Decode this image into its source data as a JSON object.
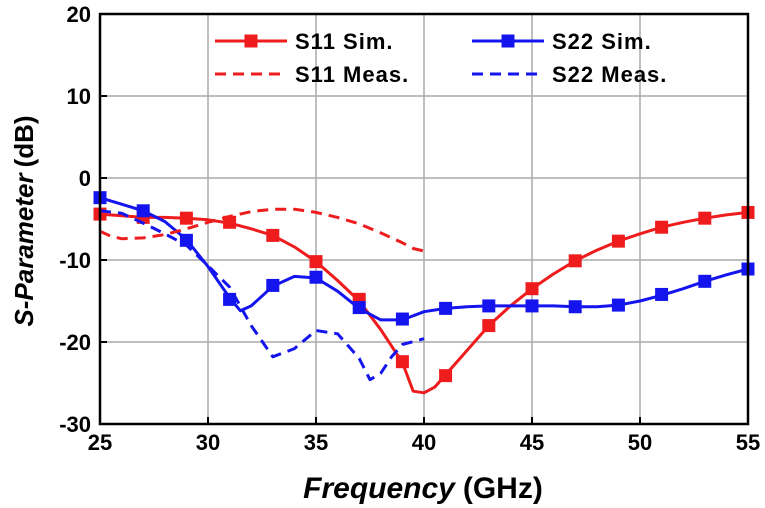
{
  "chart_data": {
    "type": "line",
    "title": "",
    "xlabel_main": "Frequency",
    "xlabel_unit": "(GHz)",
    "ylabel_main": "S-Parameter",
    "ylabel_unit": "(dB)",
    "xlim": [
      25,
      55
    ],
    "ylim": [
      -30,
      20
    ],
    "xticks": [
      25,
      30,
      35,
      40,
      45,
      50,
      55
    ],
    "yticks": [
      20,
      10,
      0,
      -10,
      -20,
      -30
    ],
    "grid": true,
    "legend_position": "top-right",
    "series": [
      {
        "name": "S11 Sim.",
        "color": "#ee1c1c",
        "style": "solid",
        "marker": "square",
        "curve": [
          [
            25,
            -4.4
          ],
          [
            26,
            -4.6
          ],
          [
            27,
            -4.8
          ],
          [
            28,
            -4.8
          ],
          [
            29,
            -4.9
          ],
          [
            30,
            -5.1
          ],
          [
            31,
            -5.5
          ],
          [
            32,
            -6.2
          ],
          [
            33,
            -7.0
          ],
          [
            34,
            -8.4
          ],
          [
            35,
            -10.2
          ],
          [
            36,
            -12.5
          ],
          [
            37,
            -15.0
          ],
          [
            38,
            -18.5
          ],
          [
            39,
            -22.5
          ],
          [
            39.5,
            -26.0
          ],
          [
            40,
            -26.2
          ],
          [
            40.5,
            -25.5
          ],
          [
            41,
            -24.0
          ],
          [
            42,
            -21.0
          ],
          [
            43,
            -18.0
          ],
          [
            44,
            -15.6
          ],
          [
            45,
            -13.5
          ],
          [
            46,
            -11.7
          ],
          [
            47,
            -10.1
          ],
          [
            48,
            -8.8
          ],
          [
            49,
            -7.7
          ],
          [
            50,
            -6.8
          ],
          [
            51,
            -6.0
          ],
          [
            52,
            -5.4
          ],
          [
            53,
            -4.9
          ],
          [
            54,
            -4.5
          ],
          [
            55,
            -4.2
          ]
        ],
        "markers": [
          [
            25,
            -4.4
          ],
          [
            27,
            -4.8
          ],
          [
            29,
            -4.9
          ],
          [
            31,
            -5.4
          ],
          [
            33,
            -7.0
          ],
          [
            35,
            -10.2
          ],
          [
            37,
            -14.8
          ],
          [
            39,
            -22.4
          ],
          [
            41,
            -24.1
          ],
          [
            43,
            -18.0
          ],
          [
            45,
            -13.5
          ],
          [
            47,
            -10.1
          ],
          [
            49,
            -7.7
          ],
          [
            51,
            -6.0
          ],
          [
            53,
            -4.9
          ],
          [
            55,
            -4.2
          ]
        ]
      },
      {
        "name": "S22 Sim.",
        "color": "#1414ee",
        "style": "solid",
        "marker": "square",
        "curve": [
          [
            25,
            -2.4
          ],
          [
            26,
            -3.2
          ],
          [
            27,
            -4.0
          ],
          [
            28,
            -5.3
          ],
          [
            29,
            -7.5
          ],
          [
            30,
            -10.8
          ],
          [
            31,
            -14.6
          ],
          [
            31.5,
            -16.2
          ],
          [
            32,
            -15.6
          ],
          [
            33,
            -13.2
          ],
          [
            34,
            -12.0
          ],
          [
            35,
            -12.2
          ],
          [
            36,
            -13.8
          ],
          [
            37,
            -15.9
          ],
          [
            38,
            -17.3
          ],
          [
            39,
            -17.3
          ],
          [
            40,
            -16.3
          ],
          [
            41,
            -15.9
          ],
          [
            42,
            -15.7
          ],
          [
            43,
            -15.6
          ],
          [
            44,
            -15.6
          ],
          [
            45,
            -15.6
          ],
          [
            46,
            -15.6
          ],
          [
            47,
            -15.7
          ],
          [
            48,
            -15.7
          ],
          [
            49,
            -15.5
          ],
          [
            50,
            -15.0
          ],
          [
            51,
            -14.3
          ],
          [
            52,
            -13.5
          ],
          [
            53,
            -12.6
          ],
          [
            54,
            -11.8
          ],
          [
            55,
            -11.1
          ]
        ],
        "markers": [
          [
            25,
            -2.4
          ],
          [
            27,
            -4.0
          ],
          [
            29,
            -7.6
          ],
          [
            31,
            -14.8
          ],
          [
            33,
            -13.1
          ],
          [
            35,
            -12.1
          ],
          [
            37,
            -15.8
          ],
          [
            39,
            -17.2
          ],
          [
            41,
            -15.9
          ],
          [
            43,
            -15.6
          ],
          [
            45,
            -15.6
          ],
          [
            47,
            -15.7
          ],
          [
            49,
            -15.5
          ],
          [
            51,
            -14.2
          ],
          [
            53,
            -12.6
          ],
          [
            55,
            -11.1
          ]
        ]
      },
      {
        "name": "S11 Meas.",
        "color": "#ee1c1c",
        "style": "dashed",
        "marker": "none",
        "curve": [
          [
            25,
            -6.5
          ],
          [
            25.5,
            -7.1
          ],
          [
            26,
            -7.4
          ],
          [
            27,
            -7.3
          ],
          [
            28,
            -6.9
          ],
          [
            29,
            -6.2
          ],
          [
            30,
            -5.4
          ],
          [
            31,
            -4.7
          ],
          [
            32,
            -4.1
          ],
          [
            33,
            -3.8
          ],
          [
            34,
            -3.8
          ],
          [
            35,
            -4.2
          ],
          [
            36,
            -4.8
          ],
          [
            37,
            -5.6
          ],
          [
            38,
            -6.7
          ],
          [
            39,
            -7.9
          ],
          [
            39.5,
            -8.6
          ],
          [
            40,
            -8.9
          ]
        ]
      },
      {
        "name": "S22 Meas.",
        "color": "#1414ee",
        "style": "dashed",
        "marker": "none",
        "curve": [
          [
            25,
            -4.0
          ],
          [
            26,
            -4.3
          ],
          [
            27,
            -5.5
          ],
          [
            28,
            -6.8
          ],
          [
            29,
            -8.2
          ],
          [
            30,
            -10.7
          ],
          [
            31,
            -13.3
          ],
          [
            32,
            -18.0
          ],
          [
            33,
            -21.8
          ],
          [
            34,
            -20.8
          ],
          [
            35,
            -18.6
          ],
          [
            36,
            -19.0
          ],
          [
            37,
            -22.0
          ],
          [
            37.5,
            -24.6
          ],
          [
            38,
            -23.8
          ],
          [
            38.5,
            -21.8
          ],
          [
            39,
            -20.3
          ],
          [
            40,
            -19.6
          ]
        ]
      }
    ]
  }
}
